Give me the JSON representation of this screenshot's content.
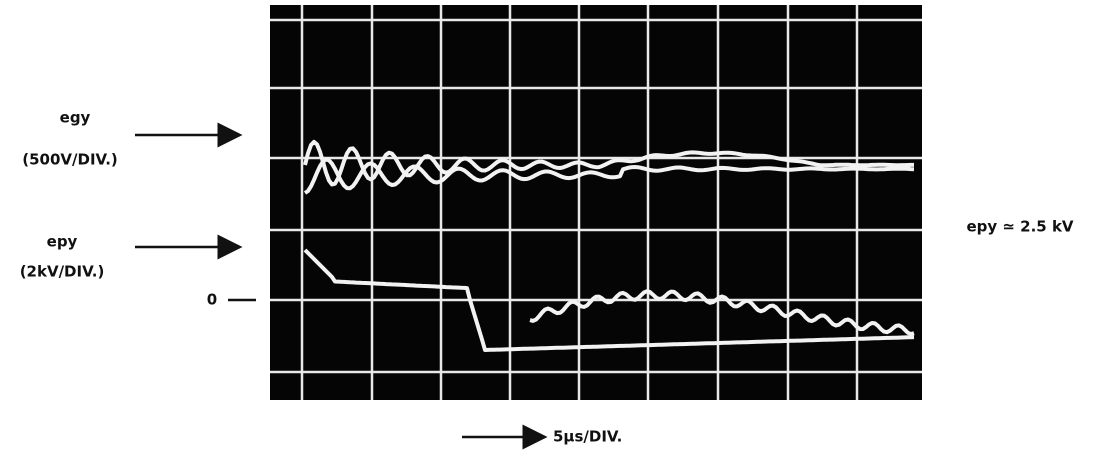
{
  "left_labels": {
    "channel_1": {
      "name": "egy",
      "scale": "(500V/DIV.)"
    },
    "channel_2": {
      "name": "epy",
      "scale": "(2kV/DIV.)"
    },
    "zero": "0"
  },
  "right_label": "epy ≃ 2.5 kV",
  "time_base": "5μs/DIV."
}
